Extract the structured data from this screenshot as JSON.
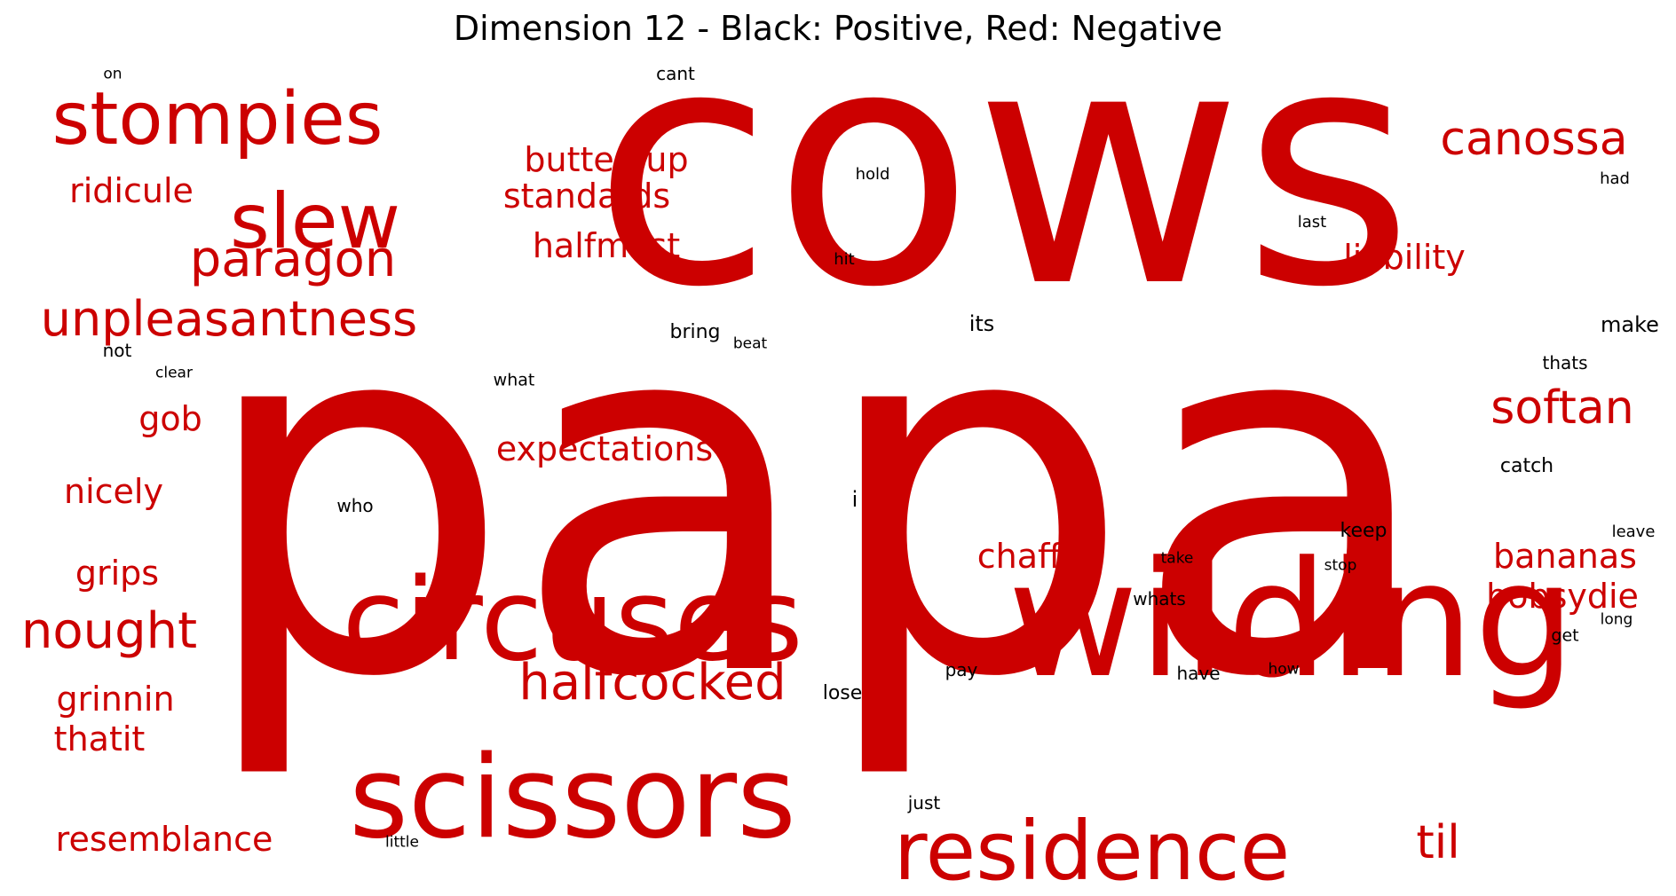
{
  "title": "Dimension 12 - Black: Positive, Red: Negative",
  "colors": {
    "positive": "#000000",
    "negative": "#cc0000"
  },
  "words": [
    {
      "text": "cows",
      "sentiment": "negative"
    },
    {
      "text": "papa",
      "sentiment": "negative"
    },
    {
      "text": "wilding",
      "sentiment": "negative"
    },
    {
      "text": "circuses",
      "sentiment": "negative"
    },
    {
      "text": "scissors",
      "sentiment": "negative"
    },
    {
      "text": "residence",
      "sentiment": "negative"
    },
    {
      "text": "stompies",
      "sentiment": "negative"
    },
    {
      "text": "slew",
      "sentiment": "negative"
    },
    {
      "text": "unpleasantness",
      "sentiment": "negative"
    },
    {
      "text": "paragon",
      "sentiment": "negative"
    },
    {
      "text": "halfcocked",
      "sentiment": "negative"
    },
    {
      "text": "nought",
      "sentiment": "negative"
    },
    {
      "text": "canossa",
      "sentiment": "negative"
    },
    {
      "text": "softan",
      "sentiment": "negative"
    },
    {
      "text": "til",
      "sentiment": "negative"
    },
    {
      "text": "buttercup",
      "sentiment": "negative"
    },
    {
      "text": "standards",
      "sentiment": "negative"
    },
    {
      "text": "halfmast",
      "sentiment": "negative"
    },
    {
      "text": "liability",
      "sentiment": "negative"
    },
    {
      "text": "expectations",
      "sentiment": "negative"
    },
    {
      "text": "chaff",
      "sentiment": "negative"
    },
    {
      "text": "bananas",
      "sentiment": "negative"
    },
    {
      "text": "bobsydie",
      "sentiment": "negative"
    },
    {
      "text": "ridicule",
      "sentiment": "negative"
    },
    {
      "text": "gob",
      "sentiment": "negative"
    },
    {
      "text": "nicely",
      "sentiment": "negative"
    },
    {
      "text": "grips",
      "sentiment": "negative"
    },
    {
      "text": "grinnin",
      "sentiment": "negative"
    },
    {
      "text": "thatit",
      "sentiment": "negative"
    },
    {
      "text": "resemblance",
      "sentiment": "negative"
    },
    {
      "text": "on",
      "sentiment": "positive"
    },
    {
      "text": "cant",
      "sentiment": "positive"
    },
    {
      "text": "hold",
      "sentiment": "positive"
    },
    {
      "text": "had",
      "sentiment": "positive"
    },
    {
      "text": "last",
      "sentiment": "positive"
    },
    {
      "text": "hit",
      "sentiment": "positive"
    },
    {
      "text": "its",
      "sentiment": "positive"
    },
    {
      "text": "make",
      "sentiment": "positive"
    },
    {
      "text": "bring",
      "sentiment": "positive"
    },
    {
      "text": "beat",
      "sentiment": "positive"
    },
    {
      "text": "not",
      "sentiment": "positive"
    },
    {
      "text": "clear",
      "sentiment": "positive"
    },
    {
      "text": "what",
      "sentiment": "positive"
    },
    {
      "text": "thats",
      "sentiment": "positive"
    },
    {
      "text": "catch",
      "sentiment": "positive"
    },
    {
      "text": "who",
      "sentiment": "positive"
    },
    {
      "text": "i",
      "sentiment": "positive"
    },
    {
      "text": "keep",
      "sentiment": "positive"
    },
    {
      "text": "leave",
      "sentiment": "positive"
    },
    {
      "text": "take",
      "sentiment": "positive"
    },
    {
      "text": "stop",
      "sentiment": "positive"
    },
    {
      "text": "whats",
      "sentiment": "positive"
    },
    {
      "text": "long",
      "sentiment": "positive"
    },
    {
      "text": "get",
      "sentiment": "positive"
    },
    {
      "text": "pay",
      "sentiment": "positive"
    },
    {
      "text": "have",
      "sentiment": "positive"
    },
    {
      "text": "how",
      "sentiment": "positive"
    },
    {
      "text": "lose",
      "sentiment": "positive"
    },
    {
      "text": "just",
      "sentiment": "positive"
    },
    {
      "text": "little",
      "sentiment": "positive"
    }
  ]
}
